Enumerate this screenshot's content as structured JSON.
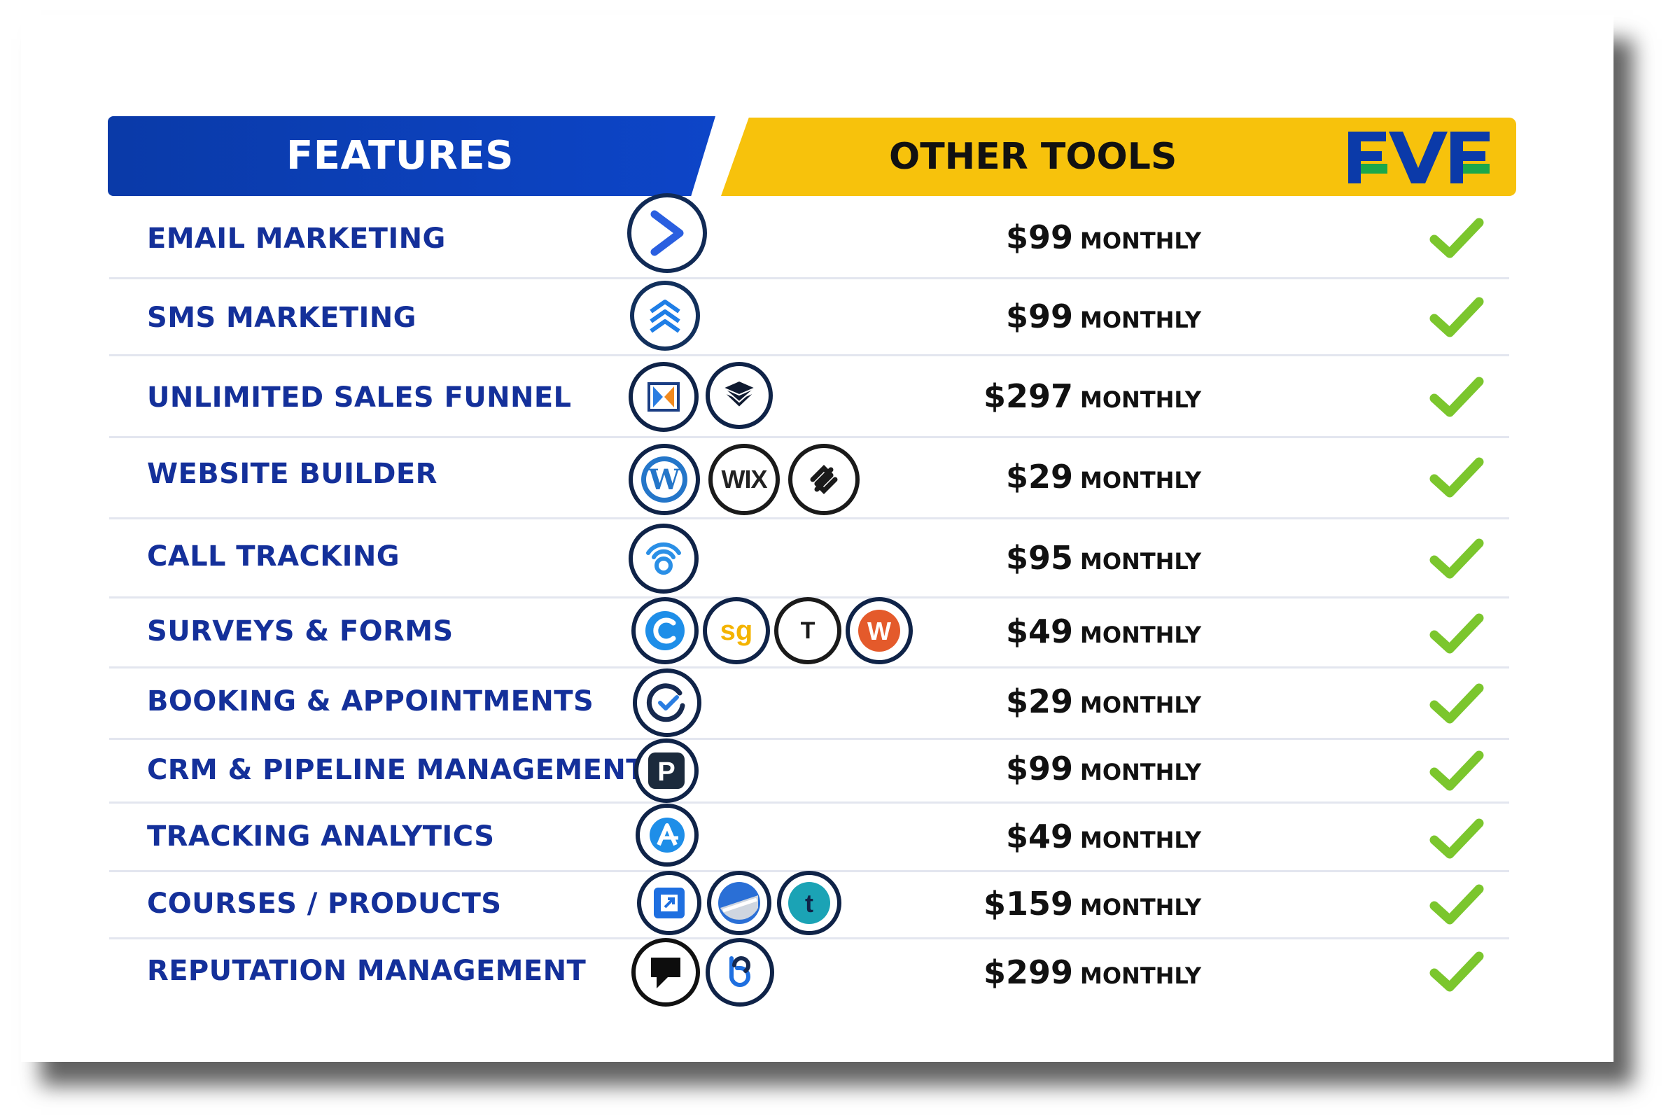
{
  "header": {
    "features": "FEATURES",
    "other_tools": "OTHER TOOLS",
    "brand": "FVF"
  },
  "rows": [
    {
      "feature": "EMAIL MARKETING",
      "price": "$99",
      "period": "MONTHLY"
    },
    {
      "feature": "SMS MARKETING",
      "price": "$99",
      "period": "MONTHLY"
    },
    {
      "feature": "UNLIMITED SALES FUNNEL",
      "price": "$297",
      "period": "MONTHLY"
    },
    {
      "feature": "WEBSITE BUILDER",
      "price": "$29",
      "period": "MONTHLY"
    },
    {
      "feature": "CALL TRACKING",
      "price": "$95",
      "period": "MONTHLY"
    },
    {
      "feature": "SURVEYS & FORMS",
      "price": "$49",
      "period": "MONTHLY"
    },
    {
      "feature": "BOOKING & APPOINTMENTS",
      "price": "$29",
      "period": "MONTHLY"
    },
    {
      "feature": "CRM & PIPELINE MANAGEMENT",
      "price": "$99",
      "period": "MONTHLY"
    },
    {
      "feature": "TRACKING ANALYTICS",
      "price": "$49",
      "period": "MONTHLY"
    },
    {
      "feature": "COURSES / PRODUCTS",
      "price": "$159",
      "period": "MONTHLY"
    },
    {
      "feature": "REPUTATION MANAGEMENT",
      "price": "$299",
      "period": "MONTHLY"
    }
  ],
  "icon_labels": {
    "wix": "WIX",
    "surveygizmo": "sg",
    "typeform": "T",
    "wufoo": "W",
    "pipedrive": "P",
    "thinkific": "t"
  },
  "colors": {
    "blue": "#0d45c8",
    "yellow": "#f7c20c",
    "text_blue": "#14309a",
    "check_green": "#7bc62d"
  }
}
